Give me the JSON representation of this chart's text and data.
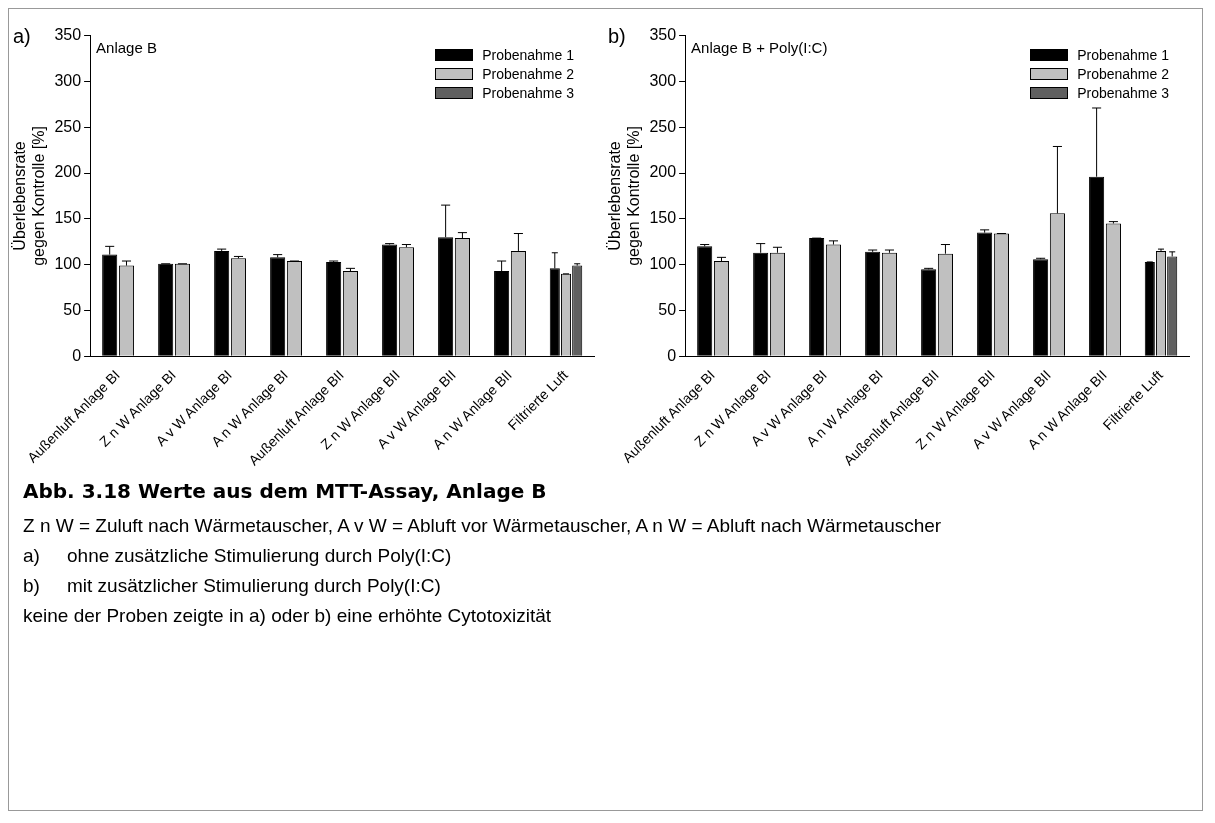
{
  "chart_data": [
    {
      "type": "bar",
      "ylabel": "Überlebensrate\ngegen Kontrolle [%]",
      "annotations": [
        "a)",
        "Anlage B"
      ],
      "categories": [
        "Außenluft Anlage BI",
        "Z n W Anlage BI",
        "A v W Anlage BI",
        "A n W Anlage BI",
        "Außenluft Anlage BII",
        "Z n W Anlage BII",
        "A v W Anlage BII",
        "A n W Anlage BII",
        "Filtrierte Luft"
      ],
      "series": [
        {
          "name": "Probenahme 1",
          "color": "#000000",
          "values": [
            111,
            101,
            115,
            108,
            103,
            122,
            130,
            93,
            96
          ],
          "errors": [
            [
              111,
              120
            ],
            [
              101,
              101
            ],
            [
              115,
              117
            ],
            [
              108,
              111
            ],
            [
              103,
              104
            ],
            [
              122,
              123
            ],
            [
              130,
              165
            ],
            [
              93,
              104
            ],
            [
              96,
              113
            ]
          ]
        },
        {
          "name": "Probenahme 2",
          "color": "#c0c0c0",
          "values": [
            99,
            101,
            107,
            104,
            93,
            119,
            129,
            115,
            90
          ],
          "errors": [
            [
              99,
              104
            ],
            [
              101,
              101
            ],
            [
              107,
              109
            ],
            [
              104,
              104
            ],
            [
              93,
              96
            ],
            [
              119,
              122
            ],
            [
              129,
              135
            ],
            [
              115,
              134
            ],
            [
              90,
              90
            ]
          ]
        },
        {
          "name": "Probenahme 3",
          "color": "#606060",
          "values": [
            null,
            null,
            null,
            null,
            null,
            null,
            null,
            null,
            99
          ],
          "errors": [
            null,
            null,
            null,
            null,
            null,
            null,
            null,
            null,
            [
              99,
              101
            ]
          ]
        }
      ],
      "ylim": [
        0,
        350
      ],
      "yticks": [
        0,
        50,
        100,
        150,
        200,
        250,
        300,
        350
      ],
      "grid": false,
      "legend": "top right"
    },
    {
      "type": "bar",
      "ylabel": "Überlebensrate\ngegen Kontrolle [%]",
      "annotations": [
        "b)",
        "Anlage B + Poly(I:C)"
      ],
      "categories": [
        "Außenluft Anlage BI",
        "Z n W Anlage BI",
        "A v W Anlage BI",
        "A n W Anlage BI",
        "Außenluft Anlage BII",
        "Z n W Anlage BII",
        "A v W Anlage BII",
        "A n W Anlage BII",
        "Filtrierte Luft"
      ],
      "series": [
        {
          "name": "Probenahme 1",
          "color": "#000000",
          "values": [
            120,
            113,
            129,
            114,
            95,
            135,
            106,
            196,
            103
          ],
          "errors": [
            [
              120,
              122
            ],
            [
              113,
              123
            ],
            [
              129,
              129
            ],
            [
              114,
              116
            ],
            [
              95,
              96
            ],
            [
              135,
              138
            ],
            [
              106,
              107
            ],
            [
              196,
              271
            ],
            [
              103,
              103
            ]
          ]
        },
        {
          "name": "Probenahme 2",
          "color": "#c0c0c0",
          "values": [
            104,
            113,
            122,
            113,
            112,
            134,
            156,
            145,
            115
          ],
          "errors": [
            [
              104,
              108
            ],
            [
              113,
              119
            ],
            [
              122,
              126
            ],
            [
              113,
              116
            ],
            [
              112,
              122
            ],
            [
              134,
              134
            ],
            [
              156,
              229
            ],
            [
              145,
              147
            ],
            [
              115,
              117
            ]
          ]
        },
        {
          "name": "Probenahme 3",
          "color": "#606060",
          "values": [
            null,
            null,
            null,
            null,
            null,
            null,
            null,
            null,
            109
          ],
          "errors": [
            null,
            null,
            null,
            null,
            null,
            null,
            null,
            null,
            [
              109,
              114
            ]
          ]
        }
      ],
      "ylim": [
        0,
        350
      ],
      "yticks": [
        0,
        50,
        100,
        150,
        200,
        250,
        300,
        350
      ],
      "grid": false,
      "legend": "top right"
    },
    {
      "type": "other",
      "title": "Abb. 3.18 Werte aus dem MTT-Assay, Anlage B",
      "annotations": [
        "Z n W = Zuluft nach Wärmetauscher, A v W = Abluft vor Wärmetauscher, A n W = Abluft nach Wärmetauscher",
        "a)\tohne zusätzliche Stimulierung durch Poly(I:C)",
        "b)\tmit zusätzlicher Stimulierung durch Poly(I:C)",
        "keine der Proben zeigte in a) oder b) eine erhöhte Cytotoxizität"
      ]
    }
  ]
}
